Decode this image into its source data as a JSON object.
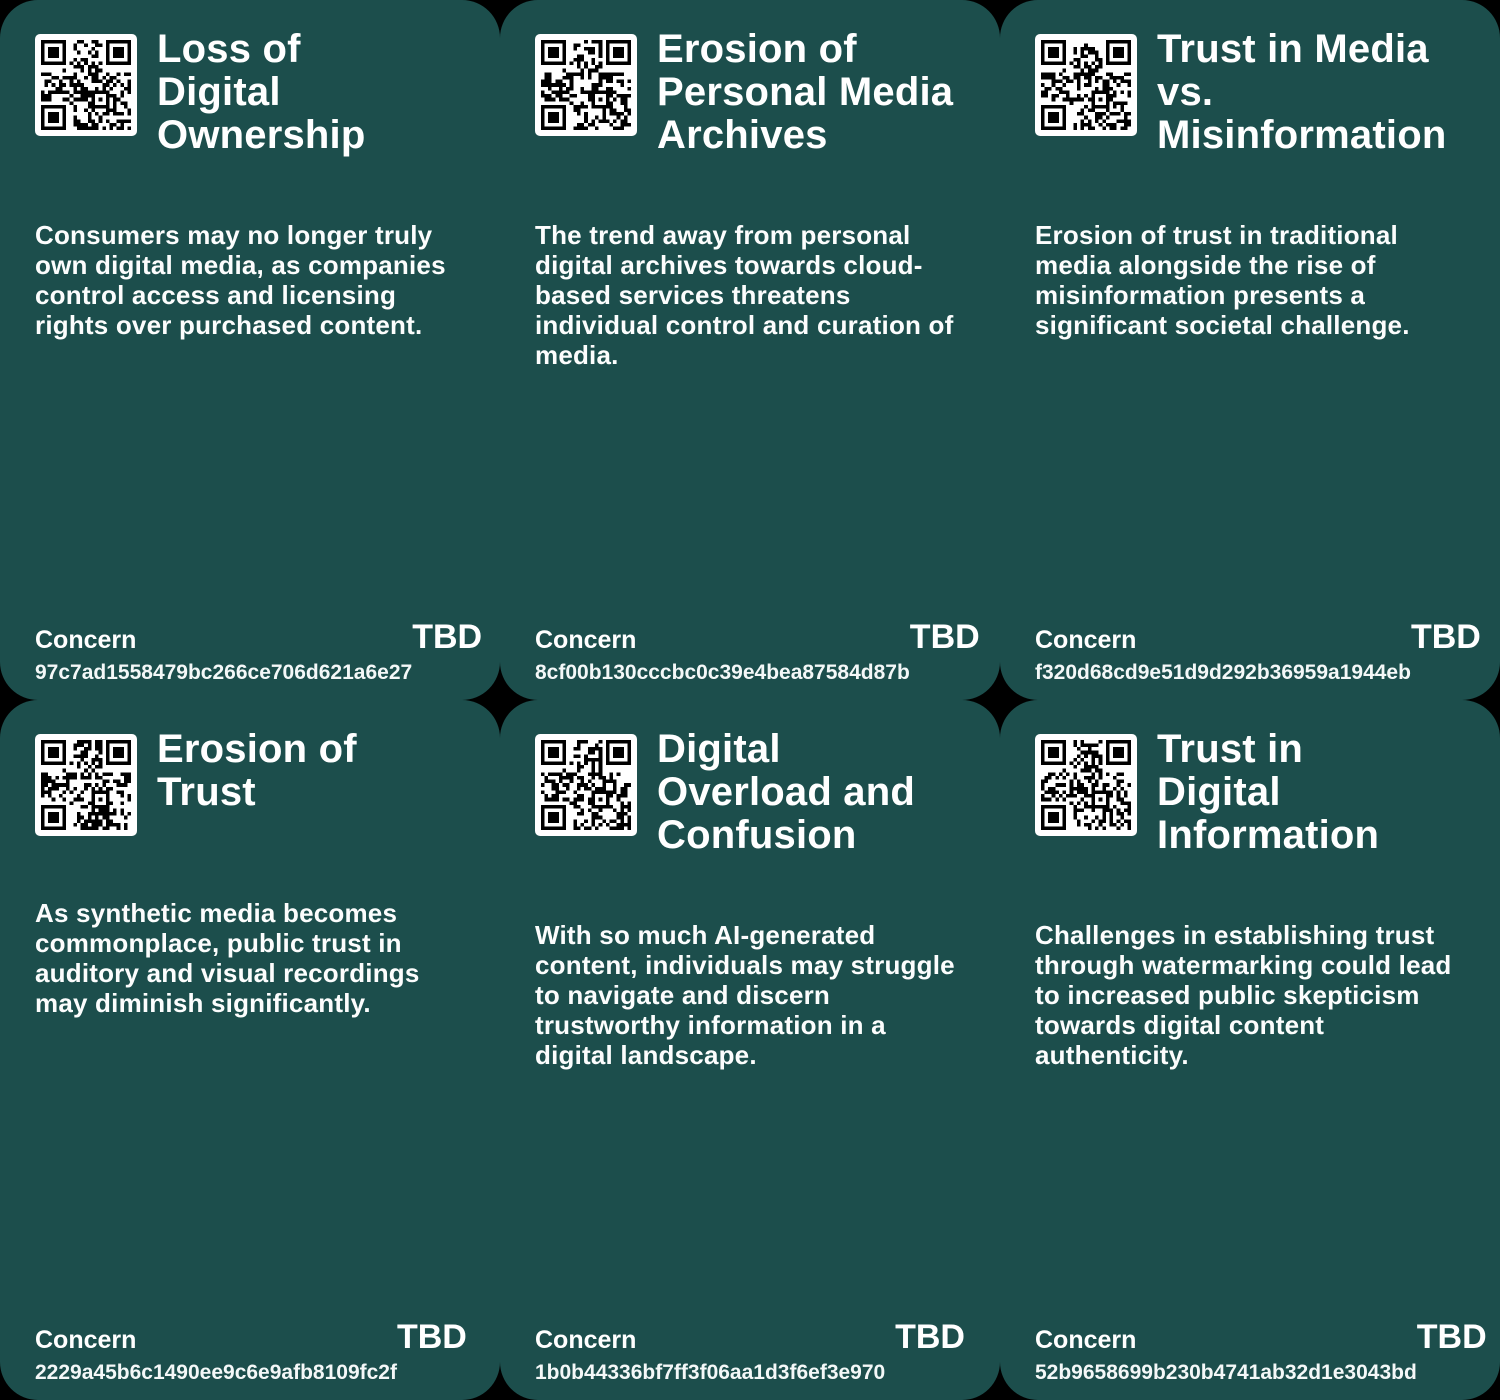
{
  "theme": {
    "page_background": "#000000",
    "card_background": "#1c4e4c",
    "text_color": "#ffffff",
    "qr_background": "#ffffff",
    "qr_foreground": "#000000"
  },
  "cards": [
    {
      "icon": "qr-code",
      "title": "Loss of\nDigital\nOwnership",
      "description": "Consumers may no longer truly own digital media, as companies control access and licensing rights over purchased content.",
      "footer_label": "Concern",
      "footer_id": "97c7ad1558479bc266ce706d621a6e27",
      "footer_status": "TBD"
    },
    {
      "icon": "qr-code",
      "title": "Erosion of\nPersonal Media\nArchives",
      "description": "The trend away from personal digital archives towards cloud-based services threatens individual control and curation of media.",
      "footer_label": "Concern",
      "footer_id": "8cf00b130cccbc0c39e4bea87584d87b",
      "footer_status": "TBD"
    },
    {
      "icon": "qr-code",
      "title": "Trust in Media\nvs.\nMisinformation",
      "description": "Erosion of trust in traditional media alongside the rise of misinformation presents a significant societal challenge.",
      "footer_label": "Concern",
      "footer_id": "f320d68cd9e51d9d292b36959a1944eb",
      "footer_status": "TBD"
    },
    {
      "icon": "qr-code",
      "title": "Erosion of\nTrust",
      "description": "As synthetic media becomes commonplace, public trust in auditory and visual recordings may diminish significantly.",
      "footer_label": "Concern",
      "footer_id": "2229a45b6c1490ee9c6e9afb8109fc2f",
      "footer_status": "TBD"
    },
    {
      "icon": "qr-code",
      "title": "Digital\nOverload and\nConfusion",
      "description": "With so much AI-generated content, individuals may struggle to navigate and discern trustworthy information in a digital landscape.",
      "footer_label": "Concern",
      "footer_id": "1b0b44336bf7ff3f06aa1d3f6ef3e970",
      "footer_status": "TBD"
    },
    {
      "icon": "qr-code",
      "title": "Trust in\nDigital\nInformation",
      "description": "Challenges in establishing trust through watermarking could lead to increased public skepticism towards digital content authenticity.",
      "footer_label": "Concern",
      "footer_id": "52b9658699b230b4741ab32d1e3043bd",
      "footer_status": "TBD"
    }
  ]
}
